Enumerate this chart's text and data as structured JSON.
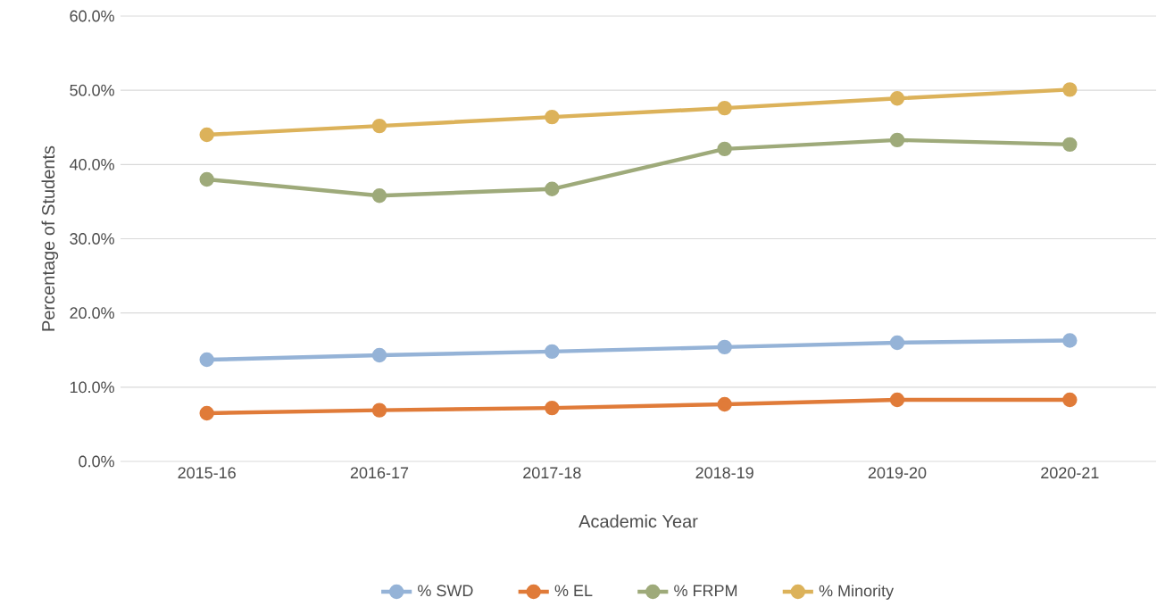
{
  "chart_data": {
    "type": "line",
    "xlabel": "Academic Year",
    "ylabel": "Percentage of Students",
    "categories": [
      "2015-16",
      "2016-17",
      "2017-18",
      "2018-19",
      "2019-20",
      "2020-21"
    ],
    "series": [
      {
        "name": "% SWD",
        "color": "#95b3d7",
        "values": [
          13.7,
          14.3,
          14.8,
          15.4,
          16.0,
          16.3
        ]
      },
      {
        "name": "% EL",
        "color": "#e07b39",
        "values": [
          6.5,
          6.9,
          7.2,
          7.7,
          8.3,
          8.3
        ]
      },
      {
        "name": "% FRPM",
        "color": "#9eaa7a",
        "values": [
          38.0,
          35.8,
          36.7,
          42.1,
          43.3,
          42.7
        ]
      },
      {
        "name": "% Minority",
        "color": "#dcb25a",
        "values": [
          44.0,
          45.2,
          46.4,
          47.6,
          48.9,
          50.1
        ]
      }
    ],
    "ylim": [
      0,
      60
    ],
    "yticks": [
      {
        "value": 0,
        "label": "0.0%"
      },
      {
        "value": 10,
        "label": "10.0%"
      },
      {
        "value": 20,
        "label": "20.0%"
      },
      {
        "value": 30,
        "label": "30.0%"
      },
      {
        "value": 40,
        "label": "40.0%"
      },
      {
        "value": 50,
        "label": "50.0%"
      },
      {
        "value": 60,
        "label": "60.0%"
      }
    ],
    "grid": "y",
    "legend": "bottom",
    "marker": "circle",
    "line_style": "solid"
  }
}
